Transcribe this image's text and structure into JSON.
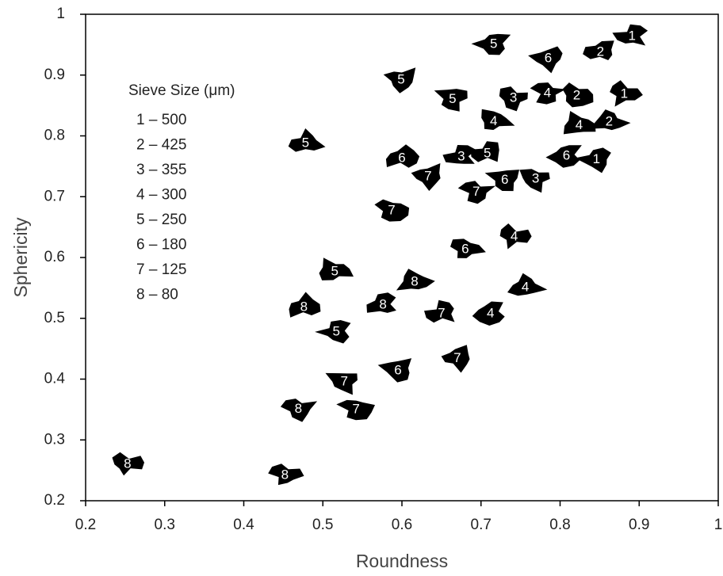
{
  "chart_data": {
    "type": "scatter",
    "x_label": "Roundness",
    "y_label": "Sphericity",
    "xlim": [
      0.2,
      1
    ],
    "ylim": [
      0.2,
      1
    ],
    "xticks": [
      0.2,
      0.3,
      0.4,
      0.5,
      0.6,
      0.7,
      0.8,
      0.9,
      1
    ],
    "yticks": [
      0.2,
      0.3,
      0.4,
      0.5,
      0.6,
      0.7,
      0.8,
      0.9,
      1
    ],
    "legend_title": "Sieve Size (μm)",
    "legend_entries": [
      "1 – 500",
      "2 – 425",
      "3 – 355",
      "4 – 300",
      "5 – 250",
      "6 – 180",
      "7 – 125",
      "8 – 80"
    ],
    "series": [
      {
        "color": "#000000",
        "x": [
          0.891,
          0.851,
          0.716,
          0.785,
          0.599,
          0.664,
          0.741,
          0.784,
          0.821,
          0.881,
          0.716,
          0.824,
          0.862,
          0.478,
          0.6,
          0.675,
          0.708,
          0.808,
          0.846,
          0.633,
          0.73,
          0.769,
          0.694,
          0.587,
          0.742,
          0.68,
          0.515,
          0.616,
          0.756,
          0.476,
          0.576,
          0.65,
          0.712,
          0.517,
          0.67,
          0.595,
          0.527,
          0.469,
          0.542,
          0.253,
          0.452
        ],
        "y": [
          0.965,
          0.939,
          0.952,
          0.928,
          0.893,
          0.861,
          0.863,
          0.871,
          0.867,
          0.87,
          0.825,
          0.818,
          0.824,
          0.789,
          0.764,
          0.767,
          0.772,
          0.768,
          0.762,
          0.734,
          0.728,
          0.73,
          0.709,
          0.678,
          0.635,
          0.614,
          0.578,
          0.561,
          0.552,
          0.519,
          0.523,
          0.509,
          0.509,
          0.479,
          0.435,
          0.415,
          0.397,
          0.352,
          0.351,
          0.261,
          0.243
        ],
        "labels": [
          "1",
          "2",
          "5",
          "6",
          "5",
          "5",
          "3",
          "4",
          "2",
          "1",
          "4",
          "4",
          "2",
          "5",
          "6",
          "3",
          "5",
          "6",
          "1",
          "7",
          "6",
          "3",
          "7",
          "7",
          "4",
          "6",
          "5",
          "8",
          "4",
          "8",
          "8",
          "7",
          "4",
          "5",
          "7",
          "6",
          "7",
          "8",
          "7",
          "8",
          "8"
        ]
      }
    ]
  }
}
